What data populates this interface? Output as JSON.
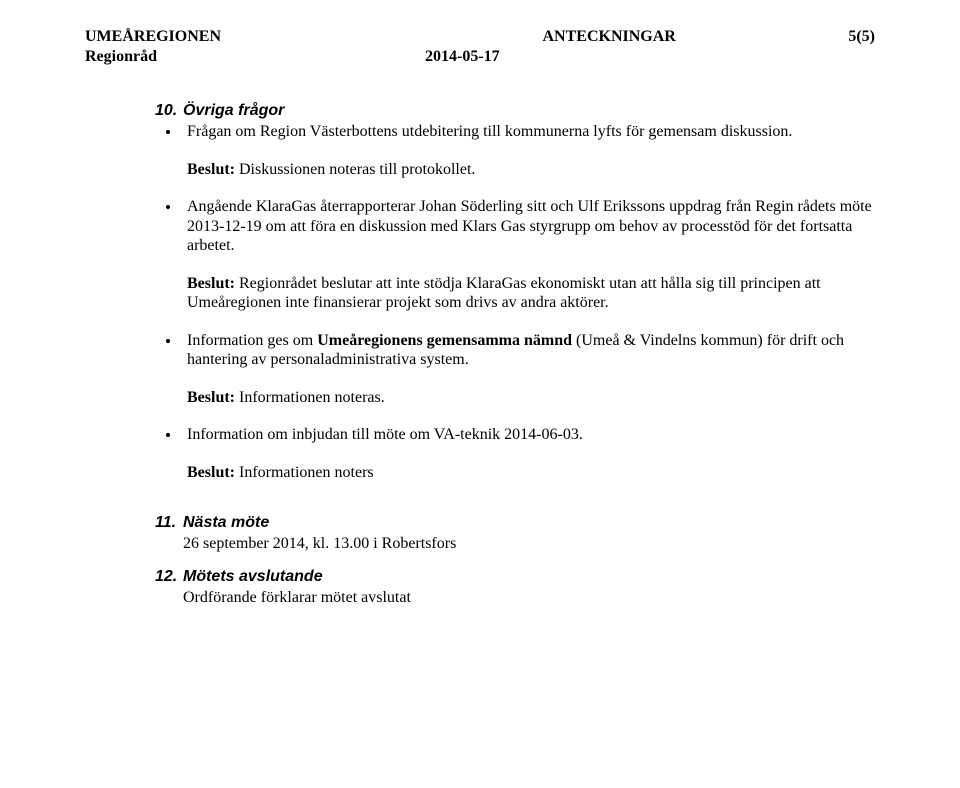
{
  "header": {
    "org": "UMEÅREGIONEN",
    "doc_type": "ANTECKNINGAR",
    "page_no": "5(5)",
    "sub_left": "Regionråd",
    "date": "2014-05-17"
  },
  "section10": {
    "num": "10.",
    "title": "Övriga frågor",
    "b1_p1": "Frågan om Region Västerbottens utdebitering till kommunerna lyfts för gemensam diskussion.",
    "b1_p2_label": "Beslut:",
    "b1_p2_rest": " Diskussionen noteras till protokollet.",
    "b2_p1": "Angående KlaraGas återrapporterar Johan Söderling sitt och Ulf Erikssons uppdrag från Regin rådets möte 2013-12-19 om att föra en diskussion med Klars Gas styrgrupp om behov av processtöd för det fortsatta arbetet.",
    "b2_p2_label": "Beslut:",
    "b2_p2_rest": " Regionrådet beslutar att inte stödja KlaraGas ekonomiskt utan att hålla sig till principen att Umeåregionen inte finansierar projekt som drivs av andra aktörer.",
    "b3_p1_pre": "Information ges om ",
    "b3_p1_bold": "Umeåregionens gemensamma nämnd",
    "b3_p1_post": " (Umeå & Vindelns kommun) för drift och hantering av personaladministrativa system.",
    "b3_p2_label": "Beslut:",
    "b3_p2_rest": " Informationen noteras.",
    "b4_p1": "Information om inbjudan till möte om VA-teknik 2014-06-03.",
    "b4_p2_label": "Beslut:",
    "b4_p2_rest": " Informationen noters"
  },
  "section11": {
    "num": "11.",
    "title": "Nästa möte",
    "line": "26 september 2014, kl. 13.00 i Robertsfors"
  },
  "section12": {
    "num": "12.",
    "title": "Mötets avslutande",
    "line": "Ordförande förklarar mötet avslutat"
  }
}
